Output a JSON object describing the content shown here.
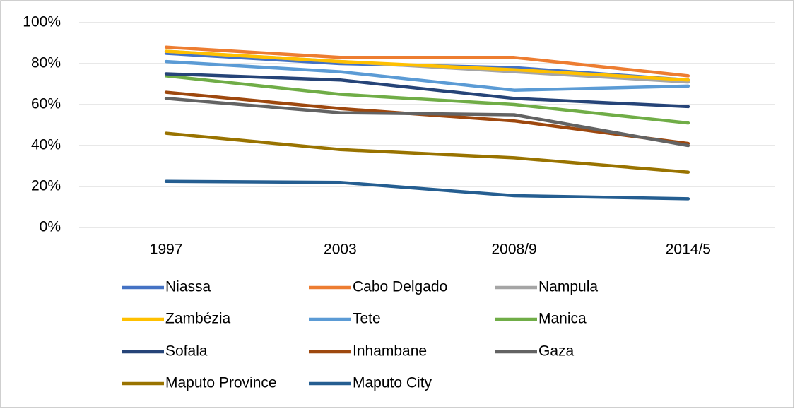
{
  "chart_data": {
    "type": "line",
    "categories": [
      "1997",
      "2003",
      "2008/9",
      "2014/5"
    ],
    "series": [
      {
        "name": "Niassa",
        "color": "#4472c4",
        "values": [
          85,
          80,
          78,
          72
        ]
      },
      {
        "name": "Cabo Delgado",
        "color": "#ed7d31",
        "values": [
          88,
          83,
          83,
          74
        ]
      },
      {
        "name": "Nampula",
        "color": "#a5a5a5",
        "values": [
          86,
          81,
          76,
          71
        ]
      },
      {
        "name": "Zambézia",
        "color": "#ffc000",
        "values": [
          86,
          81,
          77,
          72
        ]
      },
      {
        "name": "Tete",
        "color": "#5b9bd5",
        "values": [
          81,
          76,
          67,
          69
        ]
      },
      {
        "name": "Manica",
        "color": "#70ad47",
        "values": [
          74,
          65,
          60,
          51
        ]
      },
      {
        "name": "Sofala",
        "color": "#264478",
        "values": [
          75,
          72,
          63,
          59
        ]
      },
      {
        "name": "Inhambane",
        "color": "#9e480e",
        "values": [
          66,
          58,
          52,
          41
        ]
      },
      {
        "name": "Gaza",
        "color": "#636363",
        "values": [
          63,
          56,
          55,
          40
        ]
      },
      {
        "name": "Maputo Province",
        "color": "#997300",
        "values": [
          46,
          38,
          34,
          27
        ]
      },
      {
        "name": "Maputo City",
        "color": "#255e91",
        "values": [
          22.5,
          22,
          15.5,
          14
        ]
      }
    ],
    "ylim": [
      0,
      100
    ],
    "yticks": [
      {
        "value": 0,
        "label": "0%"
      },
      {
        "value": 20,
        "label": "20%"
      },
      {
        "value": 40,
        "label": "40%"
      },
      {
        "value": 60,
        "label": "60%"
      },
      {
        "value": 80,
        "label": "80%"
      },
      {
        "value": 100,
        "label": "100%"
      }
    ],
    "grid": true
  }
}
